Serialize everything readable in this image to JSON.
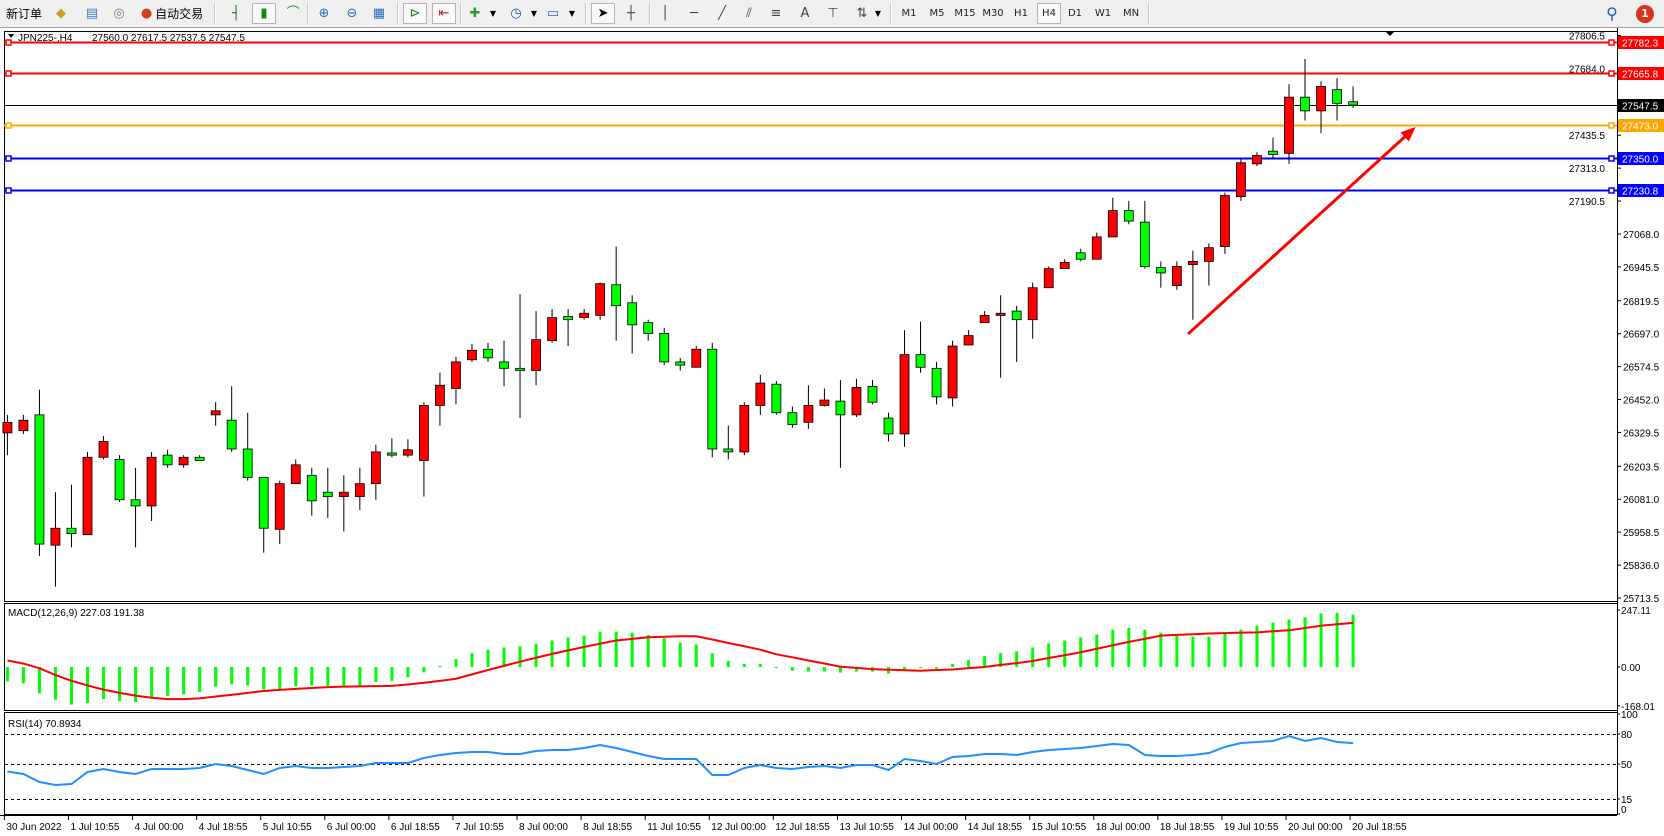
{
  "toolbar": {
    "new_order_label": "新订单",
    "auto_trading_label": "自动交易",
    "timeframes": [
      "M1",
      "M5",
      "M15",
      "M30",
      "H1",
      "H4",
      "D1",
      "W1",
      "MN"
    ],
    "active_timeframe": "H4",
    "text_tool_label": "A",
    "notification_count": "1"
  },
  "chart_header": {
    "symbol": "JPN225-,H4",
    "ohlc": "27560.0 27617.5 27537.5 27547.5"
  },
  "macd_label": "MACD(12,26,9) 227.03 191.38",
  "rsi_label": "RSI(14) 70.8934",
  "colors": {
    "bull": "#ff0000",
    "bear": "#00ff00",
    "resistance": "#ff0000",
    "pivot": "#ffa500",
    "support": "#0000ff",
    "macd_hist": "#00ff00",
    "macd_signal": "#ff0000",
    "rsi": "#1e90ff"
  },
  "chart_data": {
    "type": "candlestick",
    "symbol": "JPN225-",
    "timeframe": "H4",
    "ohlc_order": [
      "open",
      "high",
      "low",
      "close"
    ],
    "price_range": [
      25713.5,
      27806.5
    ],
    "price_ticks": [
      "27806.5",
      "27684.0",
      "27435.5",
      "27313.0",
      "27190.5",
      "27068.0",
      "26945.5",
      "26819.5",
      "26697.0",
      "26574.5",
      "26452.0",
      "26329.5",
      "26203.5",
      "26081.0",
      "25958.5",
      "25836.0",
      "25713.5"
    ],
    "time_labels": [
      "30 Jun 2022",
      "1 Jul 10:55",
      "4 Jul 00:00",
      "4 Jul 18:55",
      "5 Jul 10:55",
      "6 Jul 00:00",
      "6 Jul 18:55",
      "7 Jul 10:55",
      "8 Jul 00:00",
      "8 Jul 18:55",
      "11 Jul 10:55",
      "12 Jul 00:00",
      "12 Jul 18:55",
      "13 Jul 10:55",
      "14 Jul 00:00",
      "14 Jul 18:55",
      "15 Jul 10:55",
      "18 Jul 00:00",
      "18 Jul 18:55",
      "19 Jul 10:55",
      "20 Jul 00:00",
      "20 Jul 18:55"
    ],
    "time_label_every_bars": 4,
    "candles": [
      [
        26328,
        26395,
        26245,
        26367
      ],
      [
        26336,
        26395,
        26324,
        26375
      ],
      [
        26395,
        26489,
        25870,
        25914
      ],
      [
        25910,
        26107,
        25756,
        25973
      ],
      [
        25973,
        26135,
        25902,
        25953
      ],
      [
        25949,
        26257,
        25949,
        26237
      ],
      [
        26237,
        26316,
        26229,
        26296
      ],
      [
        26229,
        26245,
        26071,
        26079
      ],
      [
        26079,
        26198,
        25902,
        26056
      ],
      [
        26056,
        26257,
        26000,
        26237
      ],
      [
        26245,
        26265,
        26198,
        26209
      ],
      [
        26209,
        26245,
        26198,
        26237
      ],
      [
        26237,
        26245,
        26225,
        26225
      ],
      [
        26395,
        26442,
        26355,
        26410
      ],
      [
        26375,
        26501,
        26257,
        26268
      ],
      [
        26268,
        26403,
        26150,
        26162
      ],
      [
        26162,
        26162,
        25882,
        25973
      ],
      [
        25969,
        26150,
        25914,
        26139
      ],
      [
        26139,
        26229,
        26139,
        26209
      ],
      [
        26170,
        26198,
        26020,
        26075
      ],
      [
        26107,
        26198,
        26012,
        26091
      ],
      [
        26091,
        26170,
        25961,
        26107
      ],
      [
        26091,
        26198,
        26040,
        26139
      ],
      [
        26139,
        26284,
        26079,
        26257
      ],
      [
        26253,
        26308,
        26237,
        26245
      ],
      [
        26245,
        26304,
        26237,
        26265
      ],
      [
        26225,
        26442,
        26091,
        26430
      ],
      [
        26430,
        26552,
        26355,
        26505
      ],
      [
        26493,
        26611,
        26434,
        26592
      ],
      [
        26600,
        26659,
        26592,
        26635
      ],
      [
        26639,
        26663,
        26592,
        26607
      ],
      [
        26592,
        26671,
        26501,
        26568
      ],
      [
        26568,
        26844,
        26383,
        26560
      ],
      [
        26560,
        26781,
        26505,
        26675
      ],
      [
        26671,
        26789,
        26663,
        26757
      ],
      [
        26761,
        26789,
        26651,
        26749
      ],
      [
        26757,
        26789,
        26749,
        26773
      ],
      [
        26765,
        26887,
        26749,
        26883
      ],
      [
        26879,
        27021,
        26671,
        26801
      ],
      [
        26812,
        26840,
        26623,
        26730
      ],
      [
        26738,
        26749,
        26671,
        26698
      ],
      [
        26698,
        26718,
        26580,
        26592
      ],
      [
        26592,
        26607,
        26560,
        26580
      ],
      [
        26572,
        26651,
        26572,
        26639
      ],
      [
        26639,
        26663,
        26237,
        26268
      ],
      [
        26268,
        26355,
        26229,
        26257
      ],
      [
        26257,
        26442,
        26245,
        26430
      ],
      [
        26430,
        26544,
        26395,
        26513
      ],
      [
        26509,
        26521,
        26395,
        26403
      ],
      [
        26403,
        26426,
        26347,
        26359
      ],
      [
        26367,
        26505,
        26343,
        26430
      ],
      [
        26430,
        26493,
        26426,
        26450
      ],
      [
        26446,
        26525,
        26198,
        26395
      ],
      [
        26395,
        26529,
        26387,
        26497
      ],
      [
        26501,
        26525,
        26434,
        26442
      ],
      [
        26383,
        26403,
        26296,
        26324
      ],
      [
        26324,
        26710,
        26276,
        26619
      ],
      [
        26619,
        26742,
        26552,
        26572
      ],
      [
        26568,
        26592,
        26434,
        26462
      ],
      [
        26458,
        26671,
        26426,
        26651
      ],
      [
        26655,
        26710,
        26655,
        26690
      ],
      [
        26738,
        26781,
        26738,
        26765
      ],
      [
        26765,
        26840,
        26533,
        26773
      ],
      [
        26781,
        26801,
        26592,
        26749
      ],
      [
        26749,
        26887,
        26678,
        26868
      ],
      [
        26868,
        26947,
        26868,
        26939
      ],
      [
        26939,
        26974,
        26939,
        26962
      ],
      [
        26998,
        27013,
        26966,
        26974
      ],
      [
        26974,
        27073,
        26974,
        27057
      ],
      [
        27057,
        27203,
        27057,
        27155
      ],
      [
        27155,
        27191,
        27104,
        27116
      ],
      [
        27112,
        27191,
        26939,
        26947
      ],
      [
        26943,
        26966,
        26868,
        26923
      ],
      [
        26876,
        26966,
        26860,
        26947
      ],
      [
        26954,
        27006,
        26749,
        26966
      ],
      [
        26966,
        27033,
        26876,
        27017
      ],
      [
        27021,
        27222,
        26994,
        27211
      ],
      [
        27207,
        27349,
        27191,
        27333
      ],
      [
        27329,
        27372,
        27321,
        27360
      ],
      [
        27376,
        27427,
        27349,
        27364
      ],
      [
        27368,
        27625,
        27329,
        27577
      ],
      [
        27577,
        27719,
        27490,
        27526
      ],
      [
        27526,
        27636,
        27443,
        27617
      ],
      [
        27605,
        27648,
        27490,
        27554
      ],
      [
        27560.0,
        27617.5,
        27537.5,
        27547.5
      ]
    ],
    "horizontal_lines": [
      {
        "price": "27782.3",
        "kind": "resistance"
      },
      {
        "price": "27665.8",
        "kind": "resistance"
      },
      {
        "price": "27547.5",
        "kind": "current"
      },
      {
        "price": "27473.0",
        "kind": "pivot"
      },
      {
        "price": "27350.0",
        "kind": "support"
      },
      {
        "price": "27230.8",
        "kind": "support"
      }
    ],
    "arrow": {
      "from": {
        "bar": 73.7,
        "price": 26696
      },
      "to": {
        "bar": 87.9,
        "price": 27466
      },
      "color": "#ff0000"
    },
    "macd": {
      "params": "12,26,9",
      "range": [
        -168.01,
        247.11
      ],
      "ticks": [
        "247.11",
        "0.00",
        "-168.01"
      ],
      "histogram": [
        -62,
        -71,
        -114,
        -142,
        -163,
        -156,
        -139,
        -148,
        -152,
        -133,
        -125,
        -118,
        -108,
        -85,
        -75,
        -80,
        -98,
        -97,
        -84,
        -81,
        -82,
        -82,
        -80,
        -65,
        -60,
        -45,
        -23,
        4,
        34,
        60,
        75,
        85,
        89,
        101,
        115,
        128,
        136,
        153,
        153,
        149,
        139,
        125,
        106,
        98,
        60,
        26,
        13,
        13,
        -4,
        -16,
        -20,
        -20,
        -24,
        -20,
        -20,
        -28,
        -11,
        -3,
        -7,
        13,
        30,
        47,
        60,
        68,
        85,
        102,
        115,
        128,
        141,
        162,
        170,
        162,
        149,
        136,
        132,
        132,
        145,
        162,
        179,
        192,
        206,
        215,
        232,
        235,
        227.03
      ],
      "signal": [
        28,
        15,
        -5,
        -35,
        -60,
        -80,
        -98,
        -112,
        -124,
        -133,
        -139,
        -139,
        -136,
        -128,
        -121,
        -112,
        -104,
        -99,
        -95,
        -91,
        -87,
        -85,
        -84,
        -83,
        -82,
        -76,
        -68,
        -60,
        -51,
        -32,
        -13,
        5,
        23,
        40,
        57,
        72,
        87,
        101,
        115,
        122,
        129,
        131,
        133,
        133,
        119,
        104,
        90,
        75,
        55,
        42,
        28,
        15,
        1,
        -4,
        -9,
        -12,
        -14,
        -16,
        -13,
        -11,
        -5,
        0,
        9,
        17,
        26,
        39,
        51,
        64,
        79,
        94,
        109,
        122,
        136,
        139,
        142,
        145,
        147,
        149,
        150,
        155,
        159,
        169,
        179,
        185,
        191.38
      ]
    },
    "rsi": {
      "period": 14,
      "range": [
        0,
        100
      ],
      "levels": [
        80,
        50,
        15
      ],
      "ticks": [
        "100",
        "80",
        "50",
        "15",
        "0"
      ],
      "values": [
        42.5,
        40,
        32,
        29,
        30,
        42,
        45,
        42,
        40,
        45,
        45,
        45,
        46,
        50,
        48,
        44,
        40,
        46,
        48,
        46,
        46,
        47,
        48,
        51,
        51,
        51,
        56,
        59,
        61,
        62,
        62,
        60,
        60,
        63,
        64,
        64,
        66,
        69,
        66,
        62,
        58,
        55,
        55,
        55,
        39,
        39,
        46,
        49,
        46,
        45,
        47,
        48,
        46,
        49,
        49,
        44,
        55,
        53,
        50,
        57,
        58,
        60,
        60,
        59,
        62,
        64,
        65,
        66,
        68,
        70,
        69,
        59,
        58,
        58,
        59,
        61,
        67,
        71,
        72,
        73,
        78,
        73,
        76,
        72,
        70.89
      ]
    }
  }
}
